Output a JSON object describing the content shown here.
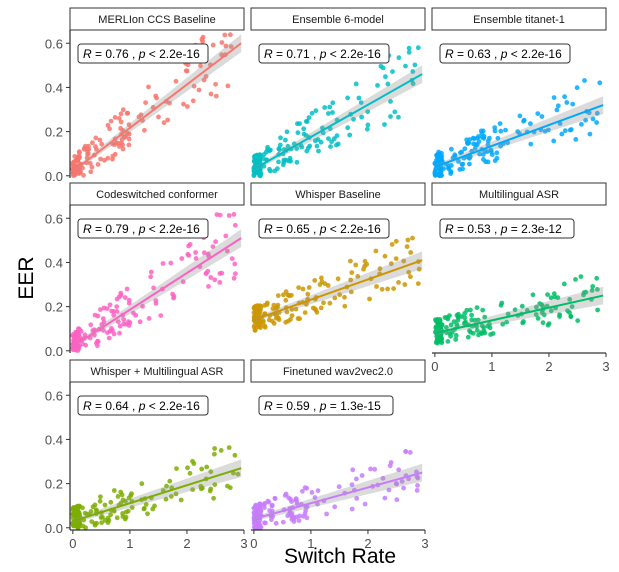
{
  "chart_data": {
    "type": "scatter",
    "xlabel": "Switch Rate",
    "ylabel": "EER",
    "xlim": [
      -0.05,
      3.0
    ],
    "ylim": [
      -0.01,
      0.66
    ],
    "x_ticks": [
      0,
      1,
      2,
      3
    ],
    "y_ticks": [
      0.0,
      0.2,
      0.4,
      0.6
    ],
    "y_tick_labels": [
      "0.0",
      "0.2",
      "0.4",
      "0.6"
    ],
    "fit": "linear regression with confidence band",
    "facets": [
      {
        "name": "MERLIon CCS Baseline",
        "color": "#F8766D",
        "stat": {
          "R": "0.76",
          "p": "p < 2.2e-16"
        },
        "fit_line": {
          "x0": 0.0,
          "y0": 0.02,
          "x1": 2.95,
          "y1": 0.6
        }
      },
      {
        "name": "Ensemble 6-model",
        "color": "#00BFC4",
        "stat": {
          "R": "0.71",
          "p": "p < 2.2e-16"
        },
        "fit_line": {
          "x0": 0.0,
          "y0": 0.03,
          "x1": 2.95,
          "y1": 0.46
        }
      },
      {
        "name": "Ensemble titanet-1",
        "color": "#00A9FF",
        "stat": {
          "R": "0.63",
          "p": "p < 2.2e-16"
        },
        "fit_line": {
          "x0": 0.0,
          "y0": 0.04,
          "x1": 2.95,
          "y1": 0.32
        }
      },
      {
        "name": "Codeswitched conformer",
        "color": "#FF61C3",
        "stat": {
          "R": "0.79",
          "p": "p < 2.2e-16"
        },
        "fit_line": {
          "x0": 0.0,
          "y0": 0.02,
          "x1": 2.95,
          "y1": 0.51
        }
      },
      {
        "name": "Whisper Baseline",
        "color": "#CD9600",
        "stat": {
          "R": "0.65",
          "p": "p < 2.2e-16"
        },
        "fit_line": {
          "x0": 0.0,
          "y0": 0.14,
          "x1": 2.95,
          "y1": 0.41
        }
      },
      {
        "name": "Multilingual ASR",
        "color": "#00BE67",
        "stat": {
          "R": "0.53",
          "p": "p = 2.3e-12"
        },
        "fit_line": {
          "x0": 0.0,
          "y0": 0.08,
          "x1": 2.95,
          "y1": 0.25
        }
      },
      {
        "name": "Whisper + Multilingual ASR",
        "color": "#7CAE00",
        "stat": {
          "R": "0.64",
          "p": "p < 2.2e-16"
        },
        "fit_line": {
          "x0": 0.0,
          "y0": 0.03,
          "x1": 2.95,
          "y1": 0.27
        }
      },
      {
        "name": "Finetuned wav2vec2.0",
        "color": "#C77CFF",
        "stat": {
          "R": "0.59",
          "p": "p = 1.3e-15"
        },
        "fit_line": {
          "x0": 0.0,
          "y0": 0.04,
          "x1": 2.95,
          "y1": 0.25
        }
      }
    ]
  }
}
